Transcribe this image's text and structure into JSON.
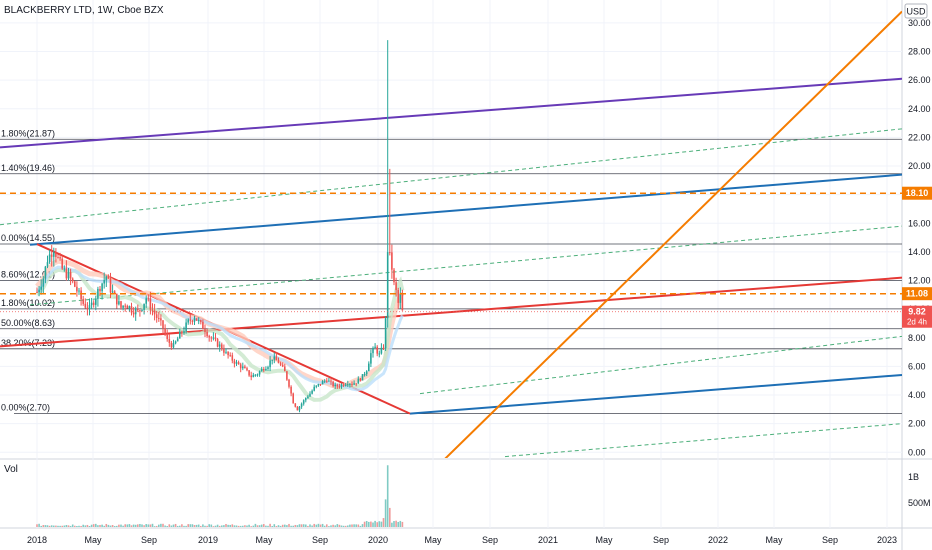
{
  "chart_data": {
    "type": "candlestick",
    "title": "BLACKBERRY LTD, 1W, Cboe BZX",
    "currency": "USD",
    "ylim": [
      -0.4,
      31.6
    ],
    "y_ticks": [
      {
        "value": 30,
        "label": "30.00"
      },
      {
        "value": 28,
        "label": "28.00"
      },
      {
        "value": 26,
        "label": "26.00"
      },
      {
        "value": 24,
        "label": "24.00"
      },
      {
        "value": 22,
        "label": "22.00"
      },
      {
        "value": 20,
        "label": "20.00"
      },
      {
        "value": 18,
        "label": "18.00"
      },
      {
        "value": 16,
        "label": "16.00"
      },
      {
        "value": 14,
        "label": "14.00"
      },
      {
        "value": 12,
        "label": "12.00"
      },
      {
        "value": 10,
        "label": "10.00"
      },
      {
        "value": 8,
        "label": "8.00"
      },
      {
        "value": 6,
        "label": "6.00"
      },
      {
        "value": 4,
        "label": "4.00"
      },
      {
        "value": 2,
        "label": "2.00"
      },
      {
        "value": 0,
        "label": "0.00"
      }
    ],
    "x_ticks": [
      "2018",
      "May",
      "Sep",
      "2019",
      "May",
      "Sep",
      "2020",
      "May",
      "Sep",
      "2021",
      "May",
      "Sep",
      "2022",
      "May",
      "Sep",
      "2023"
    ],
    "fib_levels": [
      {
        "label": "1.80%(21.87)",
        "value": 21.87
      },
      {
        "label": "1.40%(19.46)",
        "value": 19.46
      },
      {
        "label": "0.00%(14.55)",
        "value": 14.55
      },
      {
        "label": "8.60%(12.01)",
        "value": 12.01
      },
      {
        "label": "1.80%(10.02)",
        "value": 10.02
      },
      {
        "label": "50.00%(8.63)",
        "value": 8.63
      },
      {
        "label": "38.20%(7.23)",
        "value": 7.23
      },
      {
        "label": "0.00%(2.70)",
        "value": 2.7
      }
    ],
    "horizontal_lines": [
      {
        "value": 18.1,
        "label": "18.10",
        "color": "#f57c00"
      },
      {
        "value": 11.08,
        "label": "11.08",
        "color": "#f57c00"
      }
    ],
    "last_price": {
      "value": 9.82,
      "label": "9.82",
      "countdown": "2d 4h",
      "color": "#ef5350"
    },
    "volume_pane": {
      "title": "Vol",
      "ticks": [
        "1B",
        "500M"
      ]
    },
    "weekly_closes": [
      [
        0,
        11.2
      ],
      [
        3,
        12.2
      ],
      [
        5,
        13.5
      ],
      [
        8,
        14.3
      ],
      [
        10,
        13.5
      ],
      [
        12,
        12.8
      ],
      [
        15,
        12.3
      ],
      [
        18,
        11.6
      ],
      [
        20,
        11.0
      ],
      [
        22,
        10.4
      ],
      [
        25,
        10.0
      ],
      [
        28,
        10.9
      ],
      [
        30,
        11.6
      ],
      [
        33,
        12.3
      ],
      [
        35,
        11.4
      ],
      [
        38,
        10.6
      ],
      [
        40,
        10.1
      ],
      [
        42,
        10.4
      ],
      [
        45,
        10.0
      ],
      [
        48,
        9.8
      ],
      [
        50,
        10.2
      ],
      [
        52,
        10.8
      ],
      [
        55,
        9.9
      ],
      [
        58,
        9.2
      ],
      [
        60,
        8.7
      ],
      [
        62,
        7.8
      ],
      [
        65,
        7.4
      ],
      [
        68,
        8.2
      ],
      [
        70,
        8.6
      ],
      [
        72,
        9.1
      ],
      [
        75,
        9.5
      ],
      [
        78,
        8.9
      ],
      [
        80,
        8.6
      ],
      [
        82,
        8.1
      ],
      [
        85,
        7.7
      ],
      [
        88,
        7.3
      ],
      [
        90,
        6.9
      ],
      [
        92,
        6.6
      ],
      [
        95,
        6.2
      ],
      [
        98,
        5.9
      ],
      [
        100,
        5.6
      ],
      [
        102,
        5.3
      ],
      [
        105,
        5.5
      ],
      [
        108,
        5.9
      ],
      [
        110,
        6.1
      ],
      [
        112,
        6.6
      ],
      [
        115,
        6.3
      ],
      [
        118,
        5.6
      ],
      [
        120,
        4.7
      ],
      [
        122,
        3.5
      ],
      [
        124,
        3.0
      ],
      [
        126,
        3.4
      ],
      [
        128,
        3.8
      ],
      [
        130,
        4.1
      ],
      [
        132,
        4.5
      ],
      [
        135,
        4.8
      ],
      [
        138,
        5.1
      ],
      [
        140,
        4.8
      ],
      [
        142,
        4.6
      ],
      [
        145,
        4.7
      ],
      [
        148,
        4.9
      ],
      [
        150,
        4.8
      ],
      [
        152,
        4.9
      ],
      [
        155,
        5.3
      ],
      [
        157,
        5.8
      ],
      [
        159,
        6.9
      ],
      [
        161,
        7.3
      ],
      [
        163,
        6.8
      ],
      [
        165,
        7.4
      ],
      [
        166,
        9.2
      ],
      [
        167,
        14.2
      ],
      [
        168,
        13.6
      ],
      [
        169,
        12.9
      ],
      [
        170,
        11.7
      ],
      [
        171,
        11.2
      ],
      [
        172,
        10.4
      ],
      [
        173,
        10.9
      ],
      [
        174,
        9.8
      ]
    ],
    "volume_spikes_millions": [
      {
        "week": 166,
        "value": 680
      },
      {
        "week": 167,
        "value": 1520
      },
      {
        "week": 168,
        "value": 470
      },
      {
        "week": 165,
        "value": 220
      }
    ]
  }
}
